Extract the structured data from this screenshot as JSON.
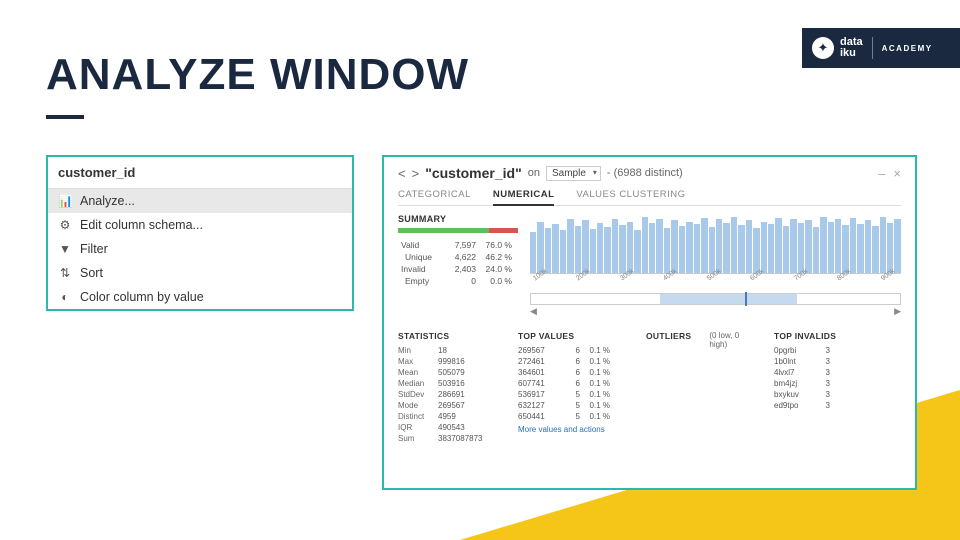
{
  "slide": {
    "title": "ANALYZE WINDOW"
  },
  "brand": {
    "name1": "data",
    "name2": "iku",
    "academy": "ACADEMY"
  },
  "leftPanel": {
    "column": "customer_id",
    "menu": [
      {
        "label": "Analyze...",
        "icon": "📊",
        "active": true
      },
      {
        "label": "Edit column schema...",
        "icon": "⚙",
        "active": false
      },
      {
        "label": "Filter",
        "icon": "▼",
        "active": false
      },
      {
        "label": "Sort",
        "icon": "⇅",
        "active": false
      },
      {
        "label": "Color column by value",
        "icon": "◐",
        "active": false
      }
    ]
  },
  "analyze": {
    "columnName": "\"customer_id\"",
    "onLabel": "on",
    "sampleLabel": "Sample",
    "distinct": "- (6988 distinct)",
    "tabs": {
      "categorical": "CATEGORICAL",
      "numerical": "NUMERICAL",
      "clustering": "VALUES CLUSTERING"
    },
    "summary": {
      "title": "SUMMARY",
      "rows": [
        {
          "label": "Valid",
          "dot": "#5fbf5f",
          "count": "7,597",
          "pct": "76.0 %"
        },
        {
          "label": "Unique",
          "dot": null,
          "count": "4,622",
          "pct": "46.2 %"
        },
        {
          "label": "Invalid",
          "dot": "#d9534f",
          "count": "2,403",
          "pct": "24.0 %"
        },
        {
          "label": "Empty",
          "dot": null,
          "count": "0",
          "pct": "0.0 %"
        }
      ],
      "validbar": [
        {
          "color": "#5fbf5f",
          "width": 76
        },
        {
          "color": "#d9534f",
          "width": 24
        }
      ]
    },
    "histogram": {
      "bars": [
        38,
        48,
        42,
        46,
        40,
        50,
        44,
        49,
        41,
        47,
        43,
        50,
        45,
        48,
        40,
        52,
        47,
        50,
        42,
        49,
        44,
        48,
        46,
        51,
        43,
        50,
        47,
        52,
        45,
        49,
        42,
        48,
        46,
        51,
        44,
        50,
        47,
        49,
        43,
        52,
        48,
        50,
        45,
        51,
        46,
        49,
        44,
        52,
        47,
        50
      ],
      "maxBar": 55,
      "barColor": "#a9c9ea",
      "axis": [
        "100k",
        "200k",
        "300k",
        "400k",
        "500k",
        "600k",
        "700k",
        "800k",
        "900k"
      ],
      "range": {
        "leftPct": 35,
        "rightPct": 72,
        "handlePct": 58
      }
    },
    "statistics": {
      "title": "STATISTICS",
      "rows": [
        {
          "l": "Min",
          "v": "18"
        },
        {
          "l": "Max",
          "v": "999816"
        },
        {
          "l": "Mean",
          "v": "505079"
        },
        {
          "l": "Median",
          "v": "503916"
        },
        {
          "l": "StdDev",
          "v": "286691"
        },
        {
          "l": "Mode",
          "v": "269567"
        },
        {
          "l": "Distinct",
          "v": "4959"
        },
        {
          "l": "IQR",
          "v": "490543"
        },
        {
          "l": "Sum",
          "v": "3837087873"
        }
      ]
    },
    "topValues": {
      "title": "TOP VALUES",
      "rows": [
        {
          "v": "269567",
          "c": "6",
          "p": "0.1 %"
        },
        {
          "v": "272461",
          "c": "6",
          "p": "0.1 %"
        },
        {
          "v": "364601",
          "c": "6",
          "p": "0.1 %"
        },
        {
          "v": "607741",
          "c": "6",
          "p": "0.1 %"
        },
        {
          "v": "536917",
          "c": "5",
          "p": "0.1 %"
        },
        {
          "v": "632127",
          "c": "5",
          "p": "0.1 %"
        },
        {
          "v": "650441",
          "c": "5",
          "p": "0.1 %"
        }
      ],
      "more": "More values and actions"
    },
    "outliers": {
      "title": "OUTLIERS",
      "text": "(0 low, 0 high)"
    },
    "topInvalids": {
      "title": "TOP INVALIDS",
      "rows": [
        {
          "v": "0pgrbi",
          "c": "3"
        },
        {
          "v": "1b0lnt",
          "c": "3"
        },
        {
          "v": "4lvxl7",
          "c": "3"
        },
        {
          "v": "bm4jzj",
          "c": "3"
        },
        {
          "v": "bxykuv",
          "c": "3"
        },
        {
          "v": "ed9tpo",
          "c": "3"
        }
      ]
    }
  }
}
